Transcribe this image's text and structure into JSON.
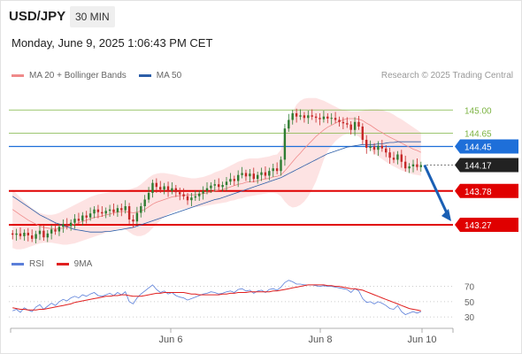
{
  "header": {
    "symbol": "USD/JPY",
    "timeframe": "30 MIN",
    "datetime": "Monday, June 9, 2025 1:06:43 PM CET"
  },
  "credit": "Research © 2025 Trading Central",
  "colors": {
    "up": "#2e7d32",
    "down": "#c62828",
    "ma20": "#ef8a8a",
    "bollinger_fill": "#fde0e0",
    "ma50": "#2c5ea8",
    "level_green": "#7cb342",
    "level_blue": "#1e6fd9",
    "level_red": "#e00000",
    "current": "#222222",
    "rsi": "#5b7fd9",
    "rsi_ma": "#e02020",
    "arrow": "#1a5fb4"
  },
  "chart_data": [
    {
      "type": "candlestick",
      "title": "",
      "legend": [
        {
          "name": "MA 20 + Bollinger Bands",
          "color": "#ef8a8a"
        },
        {
          "name": "MA 50",
          "color": "#2c5ea8"
        }
      ],
      "legend_placement": "top-left",
      "x_ticks": [
        "Jun 6",
        "Jun 8",
        "Jun 10"
      ],
      "ylim": [
        142.95,
        145.35
      ],
      "levels": [
        {
          "value": 145.0,
          "label": "145.00",
          "style": "green-line"
        },
        {
          "value": 144.65,
          "label": "144.65",
          "style": "green-line"
        },
        {
          "value": 144.45,
          "label": "144.45",
          "style": "blue-tag"
        },
        {
          "value": 144.17,
          "label": "144.17",
          "style": "current-price"
        },
        {
          "value": 143.78,
          "label": "143.78",
          "style": "red-tag"
        },
        {
          "value": 143.27,
          "label": "143.27",
          "style": "red-tag"
        }
      ],
      "projection": {
        "from": 144.17,
        "to": 143.27,
        "direction": "down"
      },
      "close_series": [
        143.12,
        143.14,
        143.1,
        143.15,
        143.11,
        143.06,
        143.13,
        143.18,
        143.08,
        143.14,
        143.2,
        143.17,
        143.24,
        143.28,
        143.25,
        143.3,
        143.36,
        143.33,
        143.41,
        143.38,
        143.44,
        143.5,
        143.46,
        143.44,
        143.48,
        143.5,
        143.46,
        143.52,
        143.49,
        143.55,
        143.35,
        143.32,
        143.45,
        143.55,
        143.65,
        143.75,
        143.9,
        143.84,
        143.8,
        143.85,
        143.78,
        143.82,
        143.76,
        143.73,
        143.7,
        143.64,
        143.68,
        143.7,
        143.74,
        143.78,
        143.82,
        143.86,
        143.88,
        143.84,
        143.87,
        143.92,
        143.96,
        143.93,
        144.02,
        144.05,
        144.0,
        144.04,
        143.96,
        144.02,
        144.06,
        144.01,
        144.08,
        144.12,
        144.08,
        144.25,
        144.72,
        144.85,
        144.95,
        144.9,
        144.92,
        144.88,
        144.92,
        144.9,
        144.88,
        144.86,
        144.9,
        144.87,
        144.88,
        144.85,
        144.82,
        144.8,
        144.78,
        144.7,
        144.82,
        144.75,
        144.55,
        144.43,
        144.45,
        144.4,
        144.46,
        144.42,
        144.36,
        144.28,
        144.25,
        144.33,
        144.22,
        144.12,
        144.15,
        144.18,
        144.14,
        144.17
      ],
      "ma20": [
        143.5,
        143.46,
        143.42,
        143.38,
        143.34,
        143.31,
        143.28,
        143.25,
        143.23,
        143.22,
        143.21,
        143.21,
        143.21,
        143.22,
        143.24,
        143.26,
        143.28,
        143.3,
        143.32,
        143.34,
        143.36,
        143.38,
        143.39,
        143.4,
        143.42,
        143.43,
        143.45,
        143.46,
        143.47,
        143.47,
        143.46,
        143.45,
        143.46,
        143.48,
        143.5,
        143.54,
        143.58,
        143.61,
        143.63,
        143.65,
        143.67,
        143.69,
        143.7,
        143.71,
        143.71,
        143.72,
        143.72,
        143.72,
        143.73,
        143.74,
        143.75,
        143.76,
        143.78,
        143.79,
        143.8,
        143.82,
        143.84,
        143.86,
        143.88,
        143.89,
        143.91,
        143.92,
        143.92,
        143.93,
        143.95,
        143.96,
        143.97,
        143.99,
        144.0,
        144.02,
        144.08,
        144.15,
        144.22,
        144.29,
        144.35,
        144.42,
        144.48,
        144.54,
        144.6,
        144.65,
        144.7,
        144.74,
        144.77,
        144.8,
        144.83,
        144.85,
        144.87,
        144.87,
        144.87,
        144.86,
        144.84,
        144.8,
        144.77,
        144.73,
        144.69,
        144.66,
        144.62,
        144.59,
        144.56,
        144.53,
        144.5,
        144.47,
        144.44,
        144.41,
        144.39,
        144.36
      ],
      "bb_upper": [
        143.8,
        143.74,
        143.68,
        143.62,
        143.57,
        143.52,
        143.48,
        143.45,
        143.43,
        143.42,
        143.42,
        143.43,
        143.45,
        143.48,
        143.51,
        143.54,
        143.57,
        143.6,
        143.63,
        143.66,
        143.69,
        143.71,
        143.73,
        143.74,
        143.75,
        143.76,
        143.77,
        143.78,
        143.79,
        143.79,
        143.8,
        143.82,
        143.84,
        143.88,
        143.93,
        143.98,
        144.02,
        144.04,
        144.05,
        144.05,
        144.04,
        144.03,
        144.02,
        144.0,
        143.99,
        143.98,
        143.97,
        143.97,
        143.98,
        143.99,
        144.01,
        144.03,
        144.06,
        144.08,
        144.1,
        144.13,
        144.16,
        144.19,
        144.22,
        144.24,
        144.26,
        144.27,
        144.27,
        144.27,
        144.28,
        144.29,
        144.3,
        144.32,
        144.33,
        144.4,
        144.62,
        144.82,
        144.97,
        145.08,
        145.14,
        145.17,
        145.18,
        145.18,
        145.18,
        145.16,
        145.14,
        145.11,
        145.08,
        145.05,
        145.02,
        145.0,
        144.99,
        144.98,
        144.98,
        144.98,
        144.99,
        145.0,
        145.01,
        145.01,
        145.01,
        145.0,
        144.98,
        144.96,
        144.93,
        144.89,
        144.86,
        144.82,
        144.78,
        144.74,
        144.7,
        144.66
      ],
      "bb_lower": [
        142.92,
        142.9,
        142.9,
        142.91,
        142.93,
        142.95,
        142.97,
        142.99,
        143.0,
        143.0,
        143.0,
        142.99,
        142.98,
        142.97,
        142.97,
        142.98,
        142.99,
        143.01,
        143.03,
        143.05,
        143.07,
        143.09,
        143.11,
        143.13,
        143.15,
        143.17,
        143.19,
        143.2,
        143.21,
        143.2,
        143.16,
        143.12,
        143.1,
        143.1,
        143.12,
        143.16,
        143.22,
        143.28,
        143.34,
        143.39,
        143.43,
        143.46,
        143.48,
        143.5,
        143.51,
        143.52,
        143.53,
        143.54,
        143.54,
        143.55,
        143.56,
        143.57,
        143.58,
        143.59,
        143.6,
        143.61,
        143.63,
        143.64,
        143.66,
        143.67,
        143.69,
        143.7,
        143.71,
        143.72,
        143.73,
        143.74,
        143.75,
        143.75,
        143.74,
        143.7,
        143.62,
        143.56,
        143.53,
        143.54,
        143.57,
        143.62,
        143.7,
        143.8,
        143.92,
        144.08,
        144.25,
        144.38,
        144.46,
        144.53,
        144.58,
        144.62,
        144.64,
        144.64,
        144.63,
        144.6,
        144.54,
        144.46,
        144.4,
        144.35,
        144.3,
        144.26,
        144.22,
        144.18,
        144.15,
        144.12,
        144.09,
        144.07,
        144.05,
        144.03,
        144.02,
        144.01
      ],
      "ma50": [
        143.7,
        143.66,
        143.62,
        143.58,
        143.54,
        143.5,
        143.46,
        143.42,
        143.39,
        143.36,
        143.33,
        143.3,
        143.28,
        143.26,
        143.24,
        143.22,
        143.2,
        143.19,
        143.18,
        143.17,
        143.16,
        143.16,
        143.16,
        143.16,
        143.17,
        143.17,
        143.18,
        143.19,
        143.2,
        143.21,
        143.22,
        143.23,
        143.25,
        143.27,
        143.29,
        143.31,
        143.33,
        143.35,
        143.37,
        143.39,
        143.41,
        143.43,
        143.45,
        143.47,
        143.49,
        143.51,
        143.53,
        143.55,
        143.57,
        143.59,
        143.61,
        143.63,
        143.65,
        143.66,
        143.68,
        143.7,
        143.72,
        143.74,
        143.76,
        143.78,
        143.8,
        143.82,
        143.84,
        143.86,
        143.88,
        143.9,
        143.92,
        143.94,
        143.96,
        143.98,
        144.01,
        144.04,
        144.07,
        144.1,
        144.13,
        144.16,
        144.19,
        144.22,
        144.25,
        144.28,
        144.31,
        144.34,
        144.36,
        144.38,
        144.4,
        144.42,
        144.44,
        144.45,
        144.46,
        144.47,
        144.48,
        144.48,
        144.48,
        144.48,
        144.49,
        144.49,
        144.5,
        144.51,
        144.51,
        144.52,
        144.52,
        144.52,
        144.52,
        144.52,
        144.52,
        144.52
      ]
    },
    {
      "type": "line",
      "title": "",
      "legend": [
        {
          "name": "RSI",
          "color": "#5b7fd9"
        },
        {
          "name": "9MA",
          "color": "#e02020"
        }
      ],
      "legend_placement": "top-left",
      "ylim": [
        22,
        80
      ],
      "y_ticks": [
        30,
        50,
        70
      ],
      "series": [
        {
          "name": "RSI",
          "values": [
            38,
            40,
            36,
            42,
            39,
            37,
            43,
            46,
            40,
            44,
            48,
            45,
            50,
            53,
            51,
            55,
            57,
            55,
            59,
            57,
            60,
            62,
            58,
            57,
            59,
            61,
            58,
            62,
            59,
            63,
            50,
            47,
            55,
            60,
            64,
            68,
            72,
            66,
            62,
            64,
            60,
            62,
            58,
            56,
            55,
            52,
            54,
            56,
            58,
            60,
            61,
            63,
            62,
            60,
            61,
            63,
            64,
            62,
            66,
            67,
            64,
            65,
            61,
            64,
            65,
            62,
            66,
            67,
            65,
            69,
            75,
            78,
            76,
            73,
            73,
            72,
            72,
            72,
            71,
            70,
            71,
            70,
            70,
            69,
            68,
            67,
            66,
            62,
            67,
            64,
            54,
            49,
            50,
            47,
            50,
            48,
            45,
            41,
            40,
            45,
            37,
            33,
            35,
            37,
            35,
            37
          ]
        },
        {
          "name": "9MA",
          "values": [
            42,
            41,
            40,
            40,
            39,
            39,
            39,
            40,
            40,
            41,
            42,
            43,
            44,
            45,
            46,
            47,
            49,
            50,
            51,
            52,
            53,
            54,
            55,
            56,
            57,
            57,
            58,
            58,
            59,
            59,
            58,
            57,
            57,
            57,
            58,
            59,
            60,
            61,
            61,
            62,
            62,
            62,
            62,
            62,
            62,
            61,
            60,
            60,
            59,
            59,
            59,
            59,
            59,
            59,
            60,
            60,
            61,
            61,
            62,
            62,
            62,
            63,
            63,
            63,
            63,
            63,
            63,
            64,
            64,
            65,
            66,
            67,
            68,
            69,
            70,
            71,
            72,
            72,
            72,
            72,
            72,
            71,
            71,
            70,
            70,
            69,
            68,
            67,
            67,
            66,
            65,
            63,
            61,
            59,
            57,
            55,
            53,
            51,
            49,
            47,
            45,
            43,
            41,
            40,
            39,
            38
          ]
        }
      ]
    }
  ]
}
